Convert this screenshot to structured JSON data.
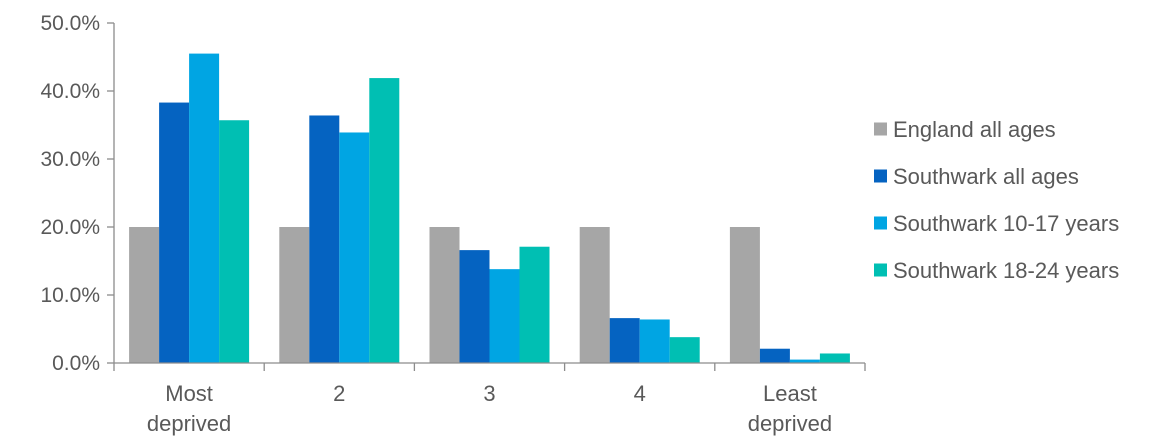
{
  "chart_data": {
    "type": "bar",
    "title": "",
    "xlabel": "",
    "ylabel": "",
    "categories": [
      [
        "Most",
        "deprived"
      ],
      [
        "2"
      ],
      [
        "3"
      ],
      [
        "4"
      ],
      [
        "Least",
        "deprived"
      ]
    ],
    "ylim": [
      0,
      50
    ],
    "y_ticks": [
      {
        "value": 0,
        "label": "0.0%"
      },
      {
        "value": 10,
        "label": "10.0%"
      },
      {
        "value": 20,
        "label": "20.0%"
      },
      {
        "value": 30,
        "label": "30.0%"
      },
      {
        "value": 40,
        "label": "40.0%"
      },
      {
        "value": 50,
        "label": "50.0%"
      }
    ],
    "grid": false,
    "legend_position": "right",
    "series": [
      {
        "name": "England all ages",
        "color": "#a6a6a6",
        "values": [
          20.0,
          20.0,
          20.0,
          20.0,
          20.0
        ]
      },
      {
        "name": "Southwark all ages",
        "color": "#0563c1",
        "values": [
          38.3,
          36.4,
          16.6,
          6.6,
          2.1
        ]
      },
      {
        "name": "Southwark 10-17 years",
        "color": "#00a5e3",
        "values": [
          45.5,
          33.9,
          13.8,
          6.4,
          0.5
        ]
      },
      {
        "name": "Southwark 18-24 years",
        "color": "#00bfb3",
        "values": [
          35.7,
          41.9,
          17.1,
          3.8,
          1.4
        ]
      }
    ]
  }
}
